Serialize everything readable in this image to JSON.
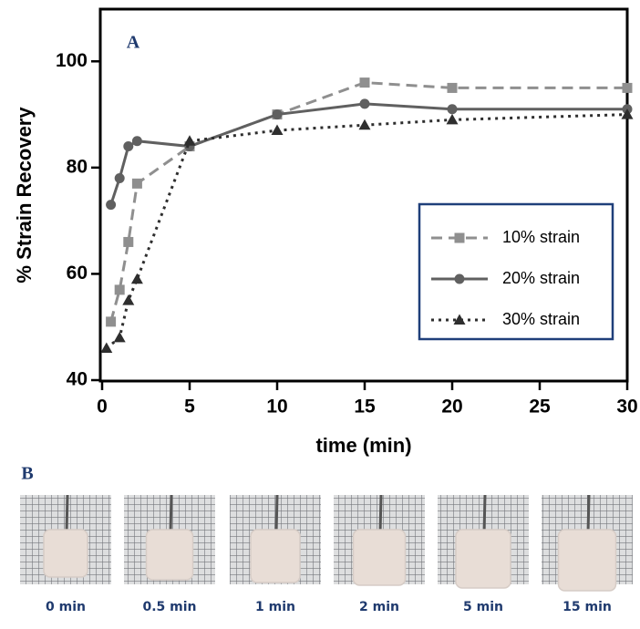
{
  "chart_data": {
    "type": "line",
    "x_label": "time (min)",
    "y_label": "% Strain Recovery",
    "xlim": [
      0,
      30
    ],
    "ylim": [
      40,
      110
    ],
    "xticks": [
      0,
      5,
      10,
      15,
      20,
      25,
      30
    ],
    "yticks": [
      40,
      60,
      80,
      100
    ],
    "legend": "lower right",
    "series": [
      {
        "name": "10% strain",
        "color": "#8f8f8f",
        "line_style": "dashed",
        "marker": "square",
        "x": [
          0.5,
          1,
          1.5,
          2,
          5,
          10,
          15,
          20,
          30
        ],
        "values": [
          51,
          57,
          66,
          77,
          84,
          90,
          96,
          95,
          95
        ]
      },
      {
        "name": "20% strain",
        "color": "#606060",
        "line_style": "solid",
        "marker": "circle",
        "x": [
          0.5,
          1,
          1.5,
          2,
          5,
          10,
          15,
          20,
          30
        ],
        "values": [
          73,
          78,
          84,
          85,
          84,
          90,
          92,
          91,
          91
        ]
      },
      {
        "name": "30% strain",
        "color": "#2e2e2e",
        "line_style": "dotted",
        "marker": "triangle",
        "x": [
          0.25,
          1,
          1.5,
          2,
          5,
          10,
          15,
          20,
          30
        ],
        "values": [
          46,
          48,
          55,
          59,
          85,
          87,
          88,
          89,
          90
        ]
      }
    ]
  },
  "panel_labels": [
    "A",
    "B"
  ],
  "photo_captions": [
    "0 min",
    "0.5 min",
    "1 min",
    "2 min",
    "5 min",
    "15 min"
  ]
}
